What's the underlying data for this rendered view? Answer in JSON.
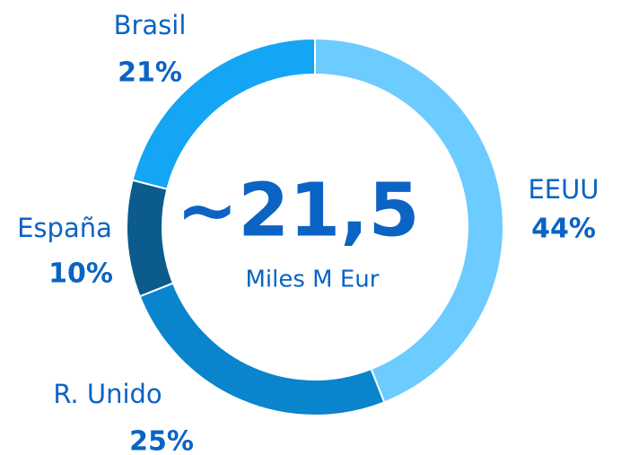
{
  "chart_data": {
    "type": "donut",
    "center_label": "~21,5",
    "center_sublabel": "Miles M Eur",
    "categories": [
      "EEUU",
      "R. Unido",
      "España",
      "Brasil"
    ],
    "values": [
      44,
      25,
      10,
      21
    ],
    "value_labels": [
      "44%",
      "25%",
      "10%",
      "21%"
    ],
    "colors": [
      "#6ccbff",
      "#0a84cc",
      "#0b5b8c",
      "#14a5f5"
    ]
  }
}
